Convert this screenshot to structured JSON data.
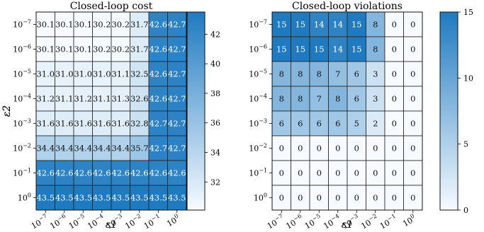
{
  "chart_data": [
    {
      "type": "heatmap",
      "title": "Closed-loop cost",
      "xlabel": "ε1",
      "ylabel": "ε2",
      "x_ticks": [
        "10^-7",
        "10^-6",
        "10^-5",
        "10^-4",
        "10^-3",
        "10^-2",
        "10^-1",
        "10^0"
      ],
      "y_ticks": [
        "10^-7",
        "10^-6",
        "10^-5",
        "10^-4",
        "10^-3",
        "10^-2",
        "10^-1",
        "10^0"
      ],
      "values": [
        [
          30.1,
          30.1,
          30.1,
          30.2,
          30.2,
          31.7,
          42.6,
          42.7
        ],
        [
          30.1,
          30.1,
          30.1,
          30.2,
          30.2,
          31.7,
          42.6,
          42.7
        ],
        [
          31.0,
          31.0,
          31.0,
          31.0,
          31.1,
          32.5,
          42.6,
          42.7
        ],
        [
          31.2,
          31.1,
          31.2,
          31.1,
          31.3,
          32.6,
          42.6,
          42.7
        ],
        [
          31.6,
          31.6,
          31.6,
          31.6,
          31.6,
          32.8,
          42.7,
          42.7
        ],
        [
          34.4,
          34.4,
          34.4,
          34.4,
          34.4,
          35.7,
          42.7,
          42.7
        ],
        [
          42.6,
          42.6,
          42.6,
          42.6,
          42.6,
          42.6,
          42.6,
          42.6
        ],
        [
          43.5,
          43.5,
          43.5,
          43.5,
          43.5,
          43.5,
          43.5,
          43.5
        ]
      ],
      "colorbar": {
        "min": 30.1,
        "max": 43.5,
        "ticks": [
          32,
          34,
          36,
          38,
          40,
          42
        ]
      },
      "colormap": [
        "#f7fbff",
        "#1f7ac0"
      ]
    },
    {
      "type": "heatmap",
      "title": "Closed-loop violations",
      "xlabel": "ε1",
      "ylabel": "ε2",
      "x_ticks": [
        "10^-7",
        "10^-6",
        "10^-5",
        "10^-4",
        "10^-3",
        "10^-2",
        "10^-1",
        "10^0"
      ],
      "y_ticks": [
        "10^-7",
        "10^-6",
        "10^-5",
        "10^-4",
        "10^-3",
        "10^-2",
        "10^-1",
        "10^0"
      ],
      "values": [
        [
          15,
          15,
          14,
          14,
          15,
          8,
          0,
          0
        ],
        [
          15,
          15,
          15,
          14,
          15,
          8,
          0,
          0
        ],
        [
          8,
          8,
          8,
          7,
          6,
          3,
          0,
          0
        ],
        [
          8,
          8,
          7,
          8,
          6,
          3,
          0,
          0
        ],
        [
          6,
          6,
          6,
          6,
          5,
          2,
          0,
          0
        ],
        [
          0,
          0,
          0,
          0,
          0,
          0,
          0,
          0
        ],
        [
          0,
          0,
          0,
          0,
          0,
          0,
          0,
          0
        ],
        [
          0,
          0,
          0,
          0,
          0,
          0,
          0,
          0
        ]
      ],
      "colorbar": {
        "min": 0,
        "max": 15,
        "ticks": [
          0,
          5,
          10,
          15
        ]
      },
      "colormap": [
        "#f7fbff",
        "#1f7ac0"
      ]
    }
  ]
}
